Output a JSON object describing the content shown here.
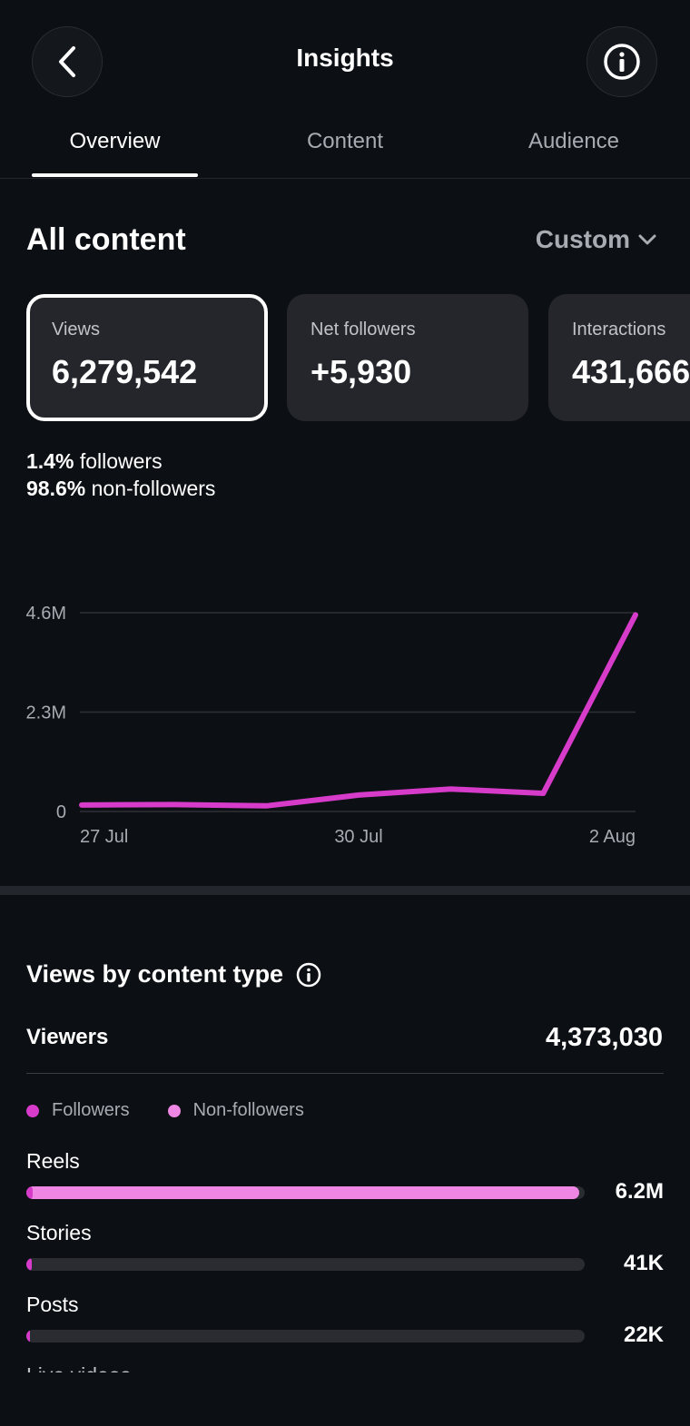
{
  "header": {
    "title": "Insights",
    "back_icon": "chevron-left-icon",
    "info_icon": "info-icon"
  },
  "tabs": [
    {
      "label": "Overview",
      "active": true
    },
    {
      "label": "Content",
      "active": false
    },
    {
      "label": "Audience",
      "active": false
    }
  ],
  "section": {
    "title": "All content",
    "range_label": "Custom"
  },
  "metrics": [
    {
      "label": "Views",
      "value": "6,279,542",
      "selected": true
    },
    {
      "label": "Net followers",
      "value": "+5,930",
      "selected": false
    },
    {
      "label": "Interactions",
      "value": "431,666",
      "selected": false
    }
  ],
  "split": {
    "followers_pct": "1.4%",
    "followers_label": "followers",
    "nonfollowers_pct": "98.6%",
    "nonfollowers_label": "non-followers"
  },
  "chart_data": {
    "type": "line",
    "x": [
      "27 Jul",
      "28 Jul",
      "29 Jul",
      "30 Jul",
      "31 Jul",
      "1 Aug",
      "2 Aug"
    ],
    "series": [
      {
        "values": [
          0.15,
          0.16,
          0.13,
          0.38,
          0.52,
          0.42,
          4.55
        ],
        "color": "#d63bc9"
      }
    ],
    "xticks": [
      "27 Jul",
      "30 Jul",
      "2 Aug"
    ],
    "yticks": [
      "0",
      "2.3M",
      "4.6M"
    ],
    "ytick_values": [
      0,
      2.3,
      4.6
    ],
    "ylim": [
      0,
      4.6
    ],
    "grid": true
  },
  "content_type": {
    "title": "Views by content type",
    "viewers_label": "Viewers",
    "viewers_value": "4,373,030",
    "legend": [
      {
        "label": "Followers",
        "color": "#d63bc9"
      },
      {
        "label": "Non-followers",
        "color": "#ef86e3"
      }
    ],
    "rows": [
      {
        "label": "Reels",
        "value": "6.2M",
        "followers_fraction": 0.011,
        "nonfollowers_fraction": 0.99
      },
      {
        "label": "Stories",
        "value": "41K",
        "followers_fraction": 0.009,
        "nonfollowers_fraction": 0.0
      },
      {
        "label": "Posts",
        "value": "22K",
        "followers_fraction": 0.006,
        "nonfollowers_fraction": 0.0
      }
    ],
    "next_row_partial": "Live videos"
  }
}
